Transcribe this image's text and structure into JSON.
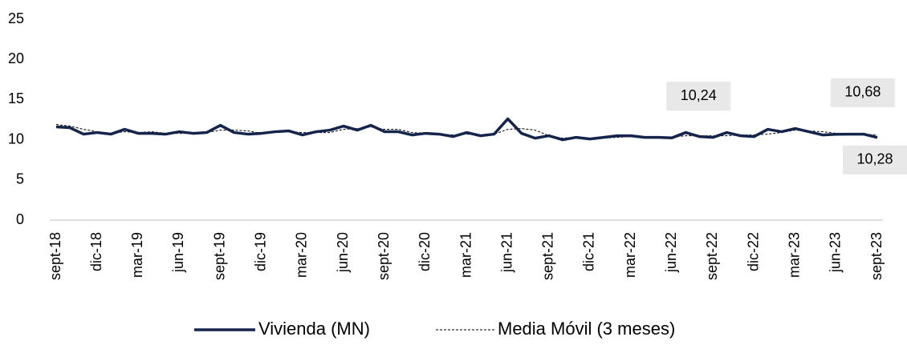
{
  "chart_data": {
    "type": "line",
    "categories": [
      "sept-18",
      null,
      null,
      "dic-18",
      null,
      null,
      "mar-19",
      null,
      null,
      "jun-19",
      null,
      null,
      "sept-19",
      null,
      null,
      "dic-19",
      null,
      null,
      "mar-20",
      null,
      null,
      "jun-20",
      null,
      null,
      "sept-20",
      null,
      null,
      "dic-20",
      null,
      null,
      "mar-21",
      null,
      null,
      "jun-21",
      null,
      null,
      "sept-21",
      null,
      null,
      "dic-21",
      null,
      null,
      "mar-22",
      null,
      null,
      "jun-22",
      null,
      null,
      "sept-22",
      null,
      null,
      "dic-22",
      null,
      null,
      "mar-23",
      null,
      null,
      "jun-23",
      null,
      null,
      "sept-23"
    ],
    "series": [
      {
        "name": "Vivienda (MN)",
        "color": "#14244a",
        "style": "solid",
        "values": [
          11.6,
          11.5,
          10.7,
          10.9,
          10.7,
          11.3,
          10.8,
          10.8,
          10.7,
          11.0,
          10.8,
          10.9,
          11.8,
          10.9,
          10.7,
          10.8,
          11.0,
          11.1,
          10.6,
          11.0,
          11.2,
          11.7,
          11.2,
          11.8,
          11.0,
          11.0,
          10.6,
          10.8,
          10.7,
          10.4,
          10.9,
          10.5,
          10.7,
          12.6,
          10.8,
          10.2,
          10.5,
          10.0,
          10.3,
          10.1,
          10.3,
          10.5,
          10.5,
          10.3,
          10.3,
          10.24,
          10.9,
          10.4,
          10.3,
          10.9,
          10.5,
          10.4,
          11.3,
          11.0,
          11.4,
          11.0,
          10.6,
          10.68,
          10.7,
          10.7,
          10.28
        ],
        "value_labels": [
          null,
          null,
          null,
          null,
          null,
          null,
          null,
          null,
          null,
          null,
          null,
          null,
          null,
          null,
          null,
          null,
          null,
          null,
          null,
          null,
          null,
          null,
          null,
          null,
          null,
          null,
          null,
          null,
          null,
          null,
          null,
          null,
          null,
          null,
          null,
          null,
          null,
          null,
          null,
          null,
          null,
          null,
          null,
          null,
          null,
          "10,24",
          null,
          null,
          null,
          null,
          null,
          null,
          null,
          null,
          null,
          null,
          null,
          "10,68",
          null,
          null,
          "10,28"
        ]
      },
      {
        "name": "Media Móvil (3 meses)",
        "color": "#000000",
        "style": "dashed",
        "values": [
          11.9,
          11.7,
          11.3,
          11.0,
          10.8,
          11.0,
          10.9,
          11.0,
          10.8,
          10.8,
          10.8,
          10.9,
          11.2,
          11.2,
          11.1,
          10.8,
          10.9,
          11.0,
          10.9,
          10.9,
          10.9,
          11.3,
          11.4,
          11.6,
          11.3,
          11.3,
          10.9,
          10.8,
          10.7,
          10.6,
          10.7,
          10.6,
          10.7,
          11.3,
          11.4,
          11.2,
          10.5,
          10.2,
          10.3,
          10.1,
          10.2,
          10.3,
          10.4,
          10.4,
          10.4,
          10.3,
          10.5,
          10.5,
          10.5,
          10.5,
          10.6,
          10.6,
          10.7,
          10.9,
          11.2,
          11.1,
          11.0,
          10.8,
          10.7,
          10.7,
          10.6
        ]
      }
    ],
    "ylim": [
      0,
      25
    ],
    "yticks": [
      0,
      5,
      10,
      15,
      20,
      25
    ],
    "grid": false,
    "legend": "bottom"
  }
}
